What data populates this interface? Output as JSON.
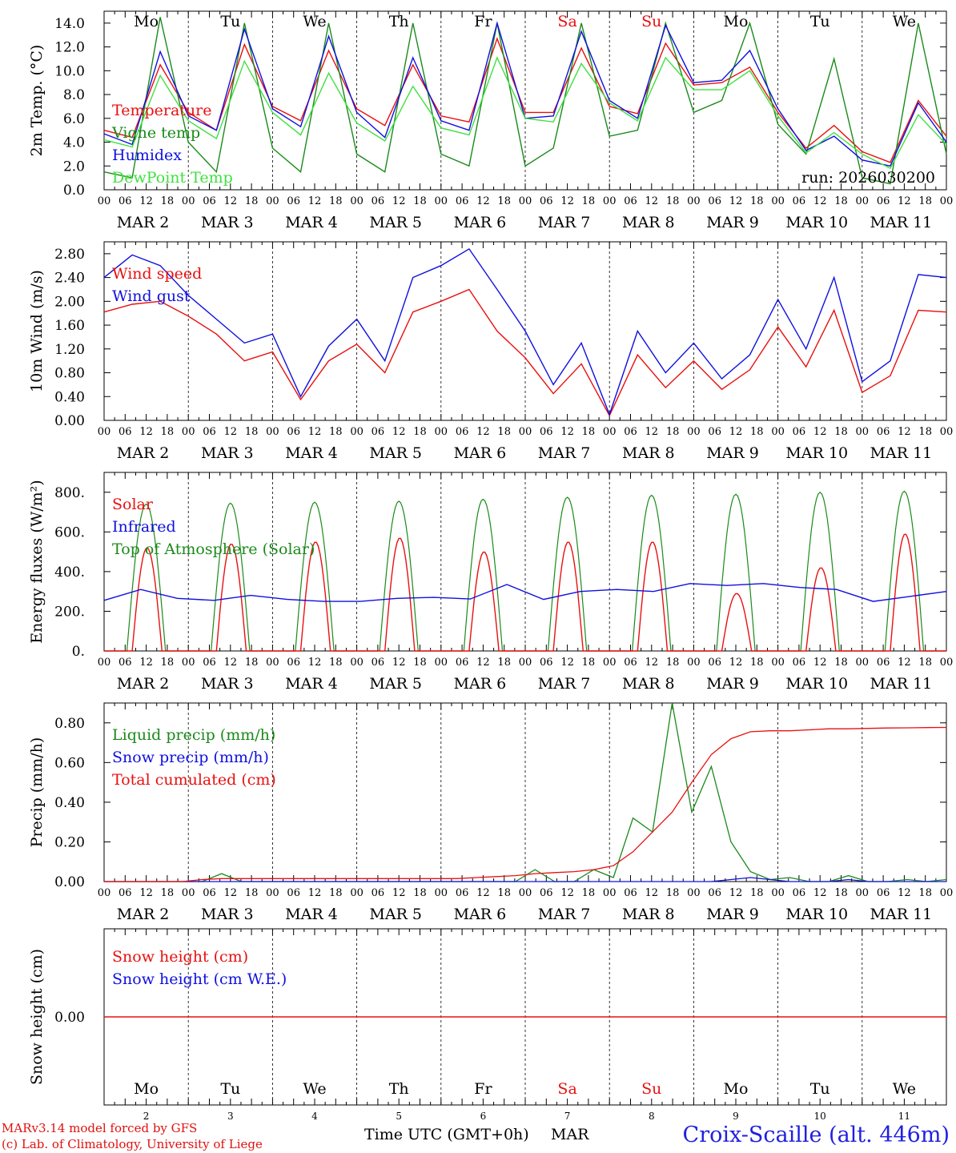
{
  "colors": {
    "red": "#e81010",
    "blue": "#1010e0",
    "green": "#1a8a1a",
    "lightgreen": "#40e040",
    "black": "#000000"
  },
  "axis": {
    "hour_labels": [
      "00",
      "06",
      "12",
      "18"
    ],
    "last_hour_label": "00",
    "month": "MAR",
    "dates": [
      "2",
      "3",
      "4",
      "5",
      "6",
      "7",
      "8",
      "9",
      "10",
      "11"
    ],
    "weekdays": [
      "Mo",
      "Tu",
      "We",
      "Th",
      "Fr",
      "Sa",
      "Su",
      "Mo",
      "Tu",
      "We"
    ],
    "weekday_colors": [
      "black",
      "black",
      "black",
      "black",
      "black",
      "red",
      "red",
      "black",
      "black",
      "black"
    ]
  },
  "footer": {
    "credit_line1": "MARv3.14 model forced by GFS",
    "credit_line2": "(c) Lab. of Climatology, University of Liege",
    "x_title": "Time UTC (GMT+0h)",
    "x_month": "MAR",
    "station": "Croix-Scaille (alt. 446m)"
  },
  "chart_data": [
    {
      "type": "line",
      "id": "temp",
      "ylabel": "2m Temp. (°C)",
      "ylim": [
        0,
        15
      ],
      "yticks": [
        0,
        2,
        4,
        6,
        8,
        10,
        12,
        14
      ],
      "ytick_labels": [
        "0.0",
        "2.0",
        "4.0",
        "6.0",
        "8.0",
        "10.0",
        "12.0",
        "14.0"
      ],
      "annotation": "run: 2026030200",
      "series": [
        {
          "name": "Temperature",
          "color": "red",
          "values": [
            5.0,
            4.4,
            10.5,
            6.5,
            5.0,
            12.2,
            7.0,
            5.8,
            11.7,
            6.8,
            5.4,
            10.5,
            6.2,
            5.7,
            12.7,
            6.5,
            6.5,
            11.9,
            7.0,
            6.4,
            12.3,
            8.8,
            9.0,
            10.3,
            6.5,
            3.5,
            5.4,
            3.2,
            2.3,
            7.5,
            4.5
          ]
        },
        {
          "name": "Vigne temp",
          "color": "green",
          "values": [
            1.5,
            1.0,
            14.5,
            4.0,
            1.5,
            14.0,
            3.5,
            1.5,
            14.0,
            3.0,
            1.5,
            14.0,
            3.0,
            2.0,
            14.0,
            2.0,
            3.5,
            14.0,
            4.5,
            5.0,
            14.0,
            6.5,
            7.5,
            14.0,
            5.5,
            3.0,
            11.0,
            1.0,
            0.5,
            14.0,
            3.0
          ]
        },
        {
          "name": "Humidex",
          "color": "blue",
          "values": [
            4.7,
            3.8,
            11.6,
            6.2,
            5.0,
            13.5,
            6.8,
            5.3,
            12.9,
            6.5,
            4.4,
            11.1,
            5.8,
            5.0,
            14.0,
            6.0,
            6.2,
            13.3,
            7.5,
            6.0,
            13.8,
            9.0,
            9.2,
            11.7,
            6.8,
            3.3,
            4.5,
            2.5,
            2.0,
            7.3,
            4.0
          ]
        },
        {
          "name": "DewPoint Temp",
          "color": "lightgreen",
          "values": [
            4.2,
            3.6,
            9.6,
            5.8,
            4.3,
            10.8,
            6.5,
            4.6,
            9.8,
            5.6,
            4.1,
            8.7,
            5.2,
            4.6,
            11.1,
            6.0,
            5.7,
            10.6,
            7.3,
            5.8,
            11.1,
            8.4,
            8.4,
            10.0,
            6.2,
            3.1,
            4.8,
            3.0,
            1.8,
            6.3,
            3.8
          ]
        }
      ]
    },
    {
      "type": "line",
      "id": "wind",
      "ylabel": "10m Wind (m/s)",
      "ylim": [
        0,
        3.0
      ],
      "yticks": [
        0,
        0.4,
        0.8,
        1.2,
        1.6,
        2.0,
        2.4,
        2.8
      ],
      "ytick_labels": [
        "0.00",
        "0.40",
        "0.80",
        "1.20",
        "1.60",
        "2.00",
        "2.40",
        "2.80"
      ],
      "series": [
        {
          "name": "Wind speed",
          "color": "red",
          "values": [
            1.82,
            1.95,
            2.0,
            1.75,
            1.45,
            1.0,
            1.15,
            0.35,
            1.0,
            1.28,
            0.8,
            1.82,
            2.0,
            2.2,
            1.5,
            1.05,
            0.45,
            0.95,
            0.08,
            1.1,
            0.55,
            1.0,
            0.52,
            0.85,
            1.57,
            0.9,
            1.85,
            0.47,
            0.75,
            1.85,
            1.82
          ]
        },
        {
          "name": "Wind gust",
          "color": "blue",
          "values": [
            2.4,
            2.78,
            2.6,
            2.1,
            1.7,
            1.3,
            1.45,
            0.4,
            1.25,
            1.7,
            1.0,
            2.4,
            2.6,
            2.88,
            2.2,
            1.5,
            0.6,
            1.3,
            0.1,
            1.5,
            0.8,
            1.3,
            0.7,
            1.1,
            2.03,
            1.2,
            2.4,
            0.65,
            1.0,
            2.45,
            2.4
          ]
        }
      ]
    },
    {
      "type": "line",
      "id": "energy",
      "ylabel": "Energy fluxes (W/m²)",
      "ylim": [
        0,
        900
      ],
      "yticks": [
        0,
        200,
        400,
        600,
        800
      ],
      "ytick_labels": [
        "0.",
        "200.",
        "400.",
        "600.",
        "800."
      ],
      "series": [
        {
          "name": "Solar",
          "color": "red",
          "peaks": [
            520,
            540,
            550,
            570,
            500,
            550,
            550,
            290,
            420,
            590
          ]
        },
        {
          "name": "Infrared",
          "color": "blue",
          "values": [
            255,
            310,
            265,
            255,
            280,
            260,
            250,
            250,
            265,
            270,
            262,
            335,
            260,
            300,
            310,
            300,
            340,
            330,
            340,
            320,
            310,
            250,
            275,
            300
          ]
        },
        {
          "name": "Top of Atmosphere (Solar)",
          "color": "green",
          "peaks": [
            740,
            745,
            750,
            755,
            765,
            775,
            785,
            790,
            800,
            805
          ]
        }
      ]
    },
    {
      "type": "line",
      "id": "precip",
      "ylabel": "Precip (mm/h)",
      "ylim": [
        0,
        0.9
      ],
      "yticks": [
        0,
        0.2,
        0.4,
        0.6,
        0.8
      ],
      "ytick_labels": [
        "0.00",
        "0.20",
        "0.40",
        "0.60",
        "0.80"
      ],
      "series": [
        {
          "name": "Liquid precip (mm/h)",
          "color": "green",
          "values": [
            0,
            0,
            0,
            0,
            0,
            0,
            0.04,
            0,
            0,
            0,
            0,
            0,
            0,
            0,
            0,
            0,
            0,
            0,
            0,
            0,
            0,
            0,
            0.06,
            0,
            0,
            0.06,
            0.02,
            0.32,
            0.25,
            0.9,
            0.35,
            0.58,
            0.2,
            0.05,
            0.01,
            0.02,
            0,
            0,
            0.03,
            0,
            0,
            0.01,
            0,
            0.01
          ]
        },
        {
          "name": "Snow precip (mm/h)",
          "color": "blue",
          "values": [
            0,
            0,
            0,
            0,
            0,
            0,
            0,
            0,
            0,
            0,
            0,
            0,
            0,
            0,
            0,
            0,
            0,
            0,
            0,
            0,
            0,
            0,
            0,
            0,
            0,
            0,
            0,
            0,
            0,
            0,
            0,
            0,
            0.01,
            0.02,
            0.01,
            0,
            0,
            0,
            0.01,
            0,
            0,
            0,
            0,
            0
          ]
        },
        {
          "name": "Total cumulated (cm)",
          "color": "red",
          "values": [
            0,
            0,
            0,
            0,
            0,
            0.01,
            0.015,
            0.015,
            0.015,
            0.015,
            0.015,
            0.015,
            0.015,
            0.015,
            0.015,
            0.015,
            0.015,
            0.015,
            0.015,
            0.02,
            0.025,
            0.03,
            0.04,
            0.045,
            0.05,
            0.06,
            0.08,
            0.15,
            0.25,
            0.35,
            0.5,
            0.64,
            0.72,
            0.755,
            0.76,
            0.76,
            0.765,
            0.77,
            0.77,
            0.772,
            0.774,
            0.775,
            0.776,
            0.777
          ]
        }
      ]
    },
    {
      "type": "line",
      "id": "snow",
      "ylabel": "Snow height (cm)",
      "ylim": [
        -1,
        1
      ],
      "yticks": [
        0
      ],
      "ytick_labels": [
        "0.00"
      ],
      "series": [
        {
          "name": "Snow height (cm)",
          "color": "red",
          "values": [
            0,
            0
          ]
        },
        {
          "name": "Snow height (cm W.E.)",
          "color": "blue",
          "values": [
            0,
            0
          ]
        }
      ]
    }
  ]
}
